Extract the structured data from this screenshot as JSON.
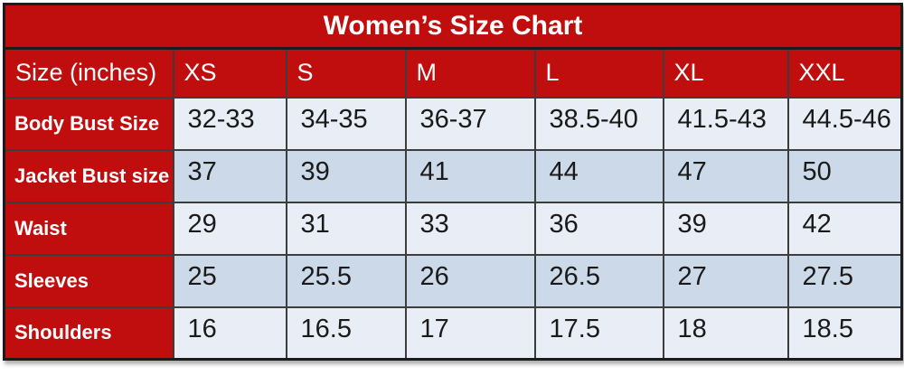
{
  "title": "Women’s Size Chart",
  "colors": {
    "red": "#c00d0d",
    "row_light": "#e9eef6",
    "row_dark": "#ccd9e8",
    "grid_border": "#3d3d3d",
    "outer_border": "#1c1c1c",
    "text_dark": "#1a1a1a",
    "text_white": "#ffffff"
  },
  "chart_data": {
    "type": "table",
    "title": "Women’s Size Chart",
    "header": [
      "Size (inches)",
      "XS",
      "S",
      "M",
      "L",
      "XL",
      "XXL"
    ],
    "rows": [
      {
        "label": "Body Bust Size",
        "values": [
          "32-33",
          "34-35",
          "36-37",
          "38.5-40",
          "41.5-43",
          "44.5-46"
        ]
      },
      {
        "label": "Jacket Bust size",
        "values": [
          "37",
          "39",
          "41",
          "44",
          "47",
          "50"
        ]
      },
      {
        "label": "Waist",
        "values": [
          "29",
          "31",
          "33",
          "36",
          "39",
          "42"
        ]
      },
      {
        "label": "Sleeves",
        "values": [
          "25",
          "25.5",
          "26",
          "26.5",
          "27",
          "27.5"
        ]
      },
      {
        "label": "Shoulders",
        "values": [
          "16",
          "16.5",
          "17",
          "17.5",
          "18",
          "18.5"
        ]
      }
    ]
  }
}
